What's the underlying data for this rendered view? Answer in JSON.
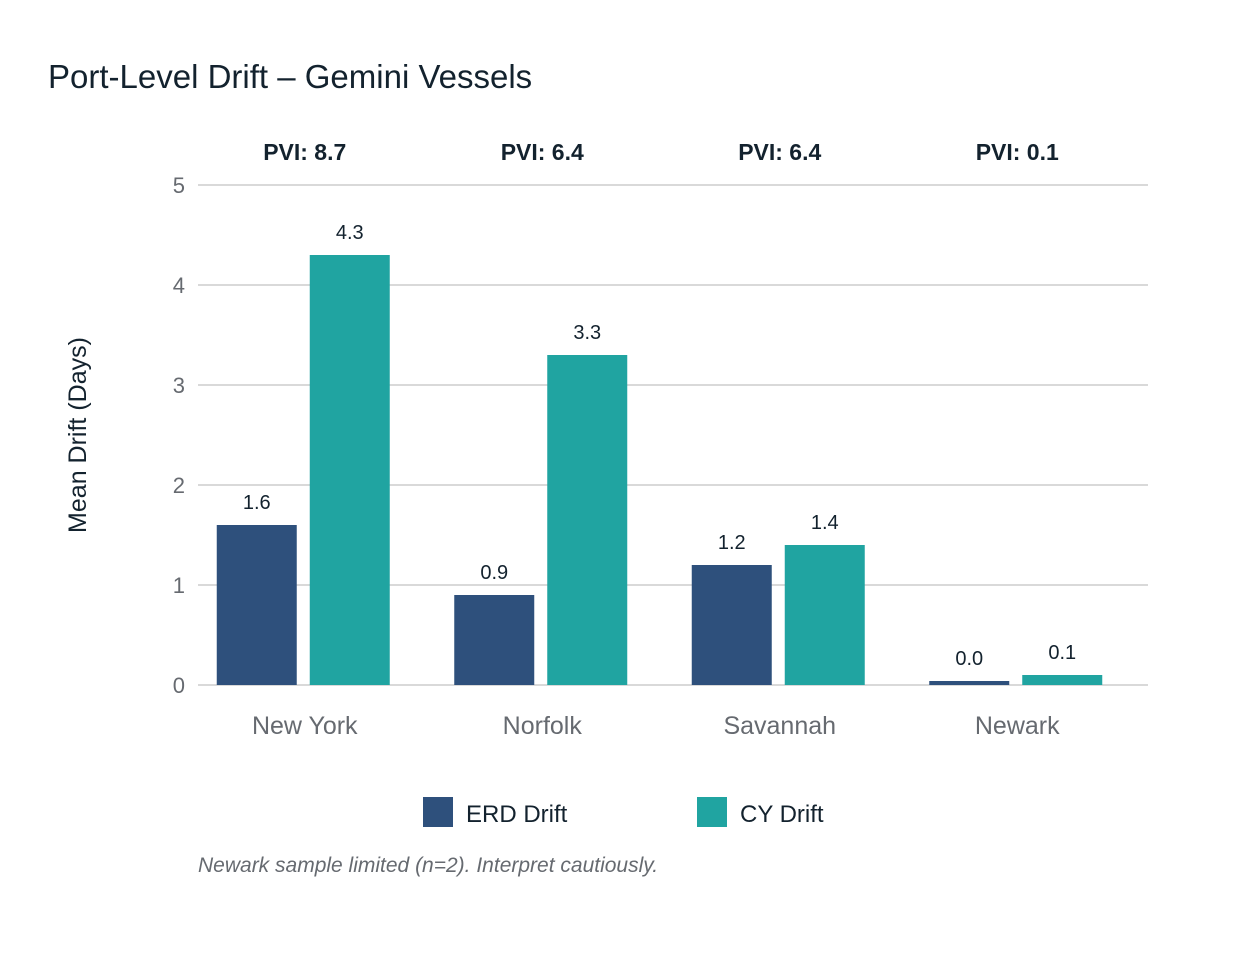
{
  "chart_data": {
    "type": "bar",
    "title": "Port-Level Drift – Gemini Vessels",
    "ylabel": "Mean Drift (Days)",
    "xlabel": "",
    "ylim": [
      0,
      5
    ],
    "yticks": [
      0,
      1,
      2,
      3,
      4,
      5
    ],
    "grid": true,
    "legend_position": "bottom",
    "categories": [
      "New York",
      "Norfolk",
      "Savannah",
      "Newark"
    ],
    "annotations": [
      "PVI: 8.7",
      "PVI: 6.4",
      "PVI: 6.4",
      "PVI: 0.1"
    ],
    "series": [
      {
        "name": "ERD Drift",
        "color": "#2e507c",
        "values": [
          1.6,
          0.9,
          1.2,
          0.0
        ]
      },
      {
        "name": "CY Drift",
        "color": "#20a4a1",
        "values": [
          4.3,
          3.3,
          1.4,
          0.1
        ]
      }
    ],
    "footnote": "Newark sample limited (n=2). Interpret cautiously."
  }
}
